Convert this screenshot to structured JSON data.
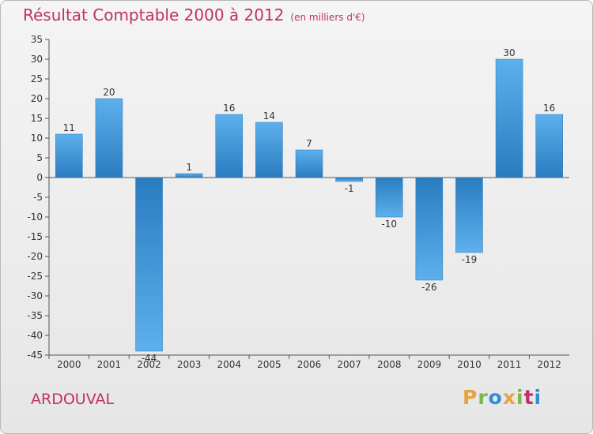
{
  "title": "Résultat Comptable 2000 à 2012",
  "subtitle": "(en milliers d'€)",
  "commune": "ARDOUVAL",
  "logo": {
    "text": "Proxiti",
    "colors": [
      "#e8a33c",
      "#7ab648",
      "#2f8fd6",
      "#e8a33c",
      "#7ab648",
      "#c0306a",
      "#2f8fd6"
    ]
  },
  "chart_data": {
    "type": "bar",
    "title": "Résultat Comptable 2000 à 2012",
    "subtitle": "(en milliers d'€)",
    "xlabel": "",
    "ylabel": "",
    "categories": [
      "2000",
      "2001",
      "2002",
      "2003",
      "2004",
      "2005",
      "2006",
      "2007",
      "2008",
      "2009",
      "2010",
      "2011",
      "2012"
    ],
    "values": [
      11,
      20,
      -44,
      1,
      16,
      14,
      7,
      -1,
      -10,
      -26,
      -19,
      30,
      16
    ],
    "data_labels": [
      "11",
      "20",
      "-44",
      "1",
      "16",
      "14",
      "7",
      "-1",
      "-10",
      "-26",
      "-19",
      "30",
      "16"
    ],
    "ylim": [
      -45,
      35
    ],
    "yticks": [
      35,
      30,
      25,
      20,
      15,
      10,
      5,
      0,
      -5,
      -10,
      -15,
      -20,
      -25,
      -30,
      -35,
      -40,
      -45
    ],
    "grid": false,
    "bar_color": "#3d95d6"
  }
}
